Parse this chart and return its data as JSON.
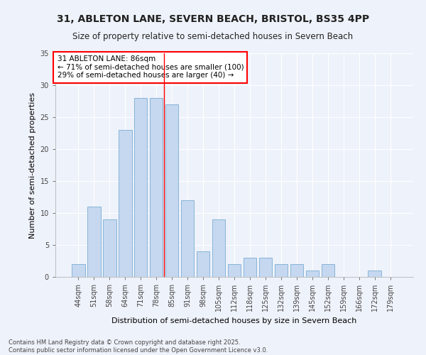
{
  "title_line1": "31, ABLETON LANE, SEVERN BEACH, BRISTOL, BS35 4PP",
  "title_line2": "Size of property relative to semi-detached houses in Severn Beach",
  "xlabel": "Distribution of semi-detached houses by size in Severn Beach",
  "ylabel": "Number of semi-detached properties",
  "categories": [
    "44sqm",
    "51sqm",
    "58sqm",
    "64sqm",
    "71sqm",
    "78sqm",
    "85sqm",
    "91sqm",
    "98sqm",
    "105sqm",
    "112sqm",
    "118sqm",
    "125sqm",
    "132sqm",
    "139sqm",
    "145sqm",
    "152sqm",
    "159sqm",
    "166sqm",
    "172sqm",
    "179sqm"
  ],
  "values": [
    2,
    11,
    9,
    23,
    28,
    28,
    27,
    12,
    4,
    9,
    2,
    3,
    3,
    2,
    2,
    1,
    2,
    0,
    0,
    1,
    0
  ],
  "bar_color": "#c5d8f0",
  "bar_edge_color": "#7aadd4",
  "annotation_text": "31 ABLETON LANE: 86sqm\n← 71% of semi-detached houses are smaller (100)\n29% of semi-detached houses are larger (40) →",
  "annotation_box_color": "white",
  "annotation_box_edge_color": "red",
  "red_line_x": 5.5,
  "ylim": [
    0,
    35
  ],
  "yticks": [
    0,
    5,
    10,
    15,
    20,
    25,
    30,
    35
  ],
  "background_color": "#eef2fa",
  "grid_color": "white",
  "footer_line1": "Contains HM Land Registry data © Crown copyright and database right 2025.",
  "footer_line2": "Contains public sector information licensed under the Open Government Licence v3.0.",
  "title_fontsize": 10,
  "subtitle_fontsize": 8.5,
  "axis_label_fontsize": 8,
  "tick_fontsize": 7,
  "annotation_fontsize": 7.5,
  "footer_fontsize": 6
}
